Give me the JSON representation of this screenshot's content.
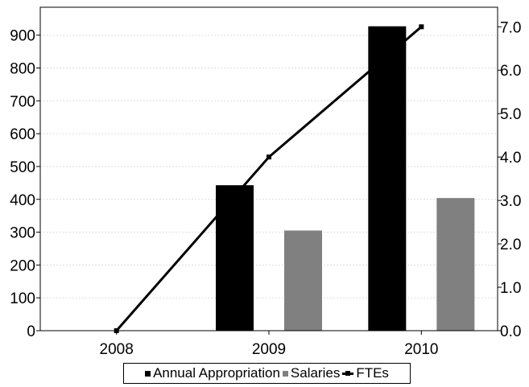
{
  "chart_data": {
    "type": "bar",
    "categories": [
      "2008",
      "2009",
      "2010"
    ],
    "series": [
      {
        "name": "Annual Appropriation",
        "type": "bar",
        "axis": "left",
        "color": "#000000",
        "values": [
          0,
          443,
          927
        ]
      },
      {
        "name": "Salaries",
        "type": "bar",
        "axis": "left",
        "color": "#808080",
        "values": [
          0,
          305,
          404
        ]
      },
      {
        "name": "FTEs",
        "type": "line",
        "axis": "right",
        "color": "#000000",
        "values": [
          0.0,
          4.0,
          7.0
        ]
      }
    ],
    "y_left": {
      "ticks": [
        "0",
        "100",
        "200",
        "300",
        "400",
        "500",
        "600",
        "700",
        "800",
        "900"
      ],
      "min": 0,
      "max": 985
    },
    "y_right": {
      "ticks": [
        "0.0",
        "1.0",
        "2.0",
        "3.0",
        "4.0",
        "5.0",
        "6.0",
        "7.0"
      ],
      "min": 0,
      "max": 7.45
    },
    "grid": true,
    "legend_position": "bottom"
  }
}
